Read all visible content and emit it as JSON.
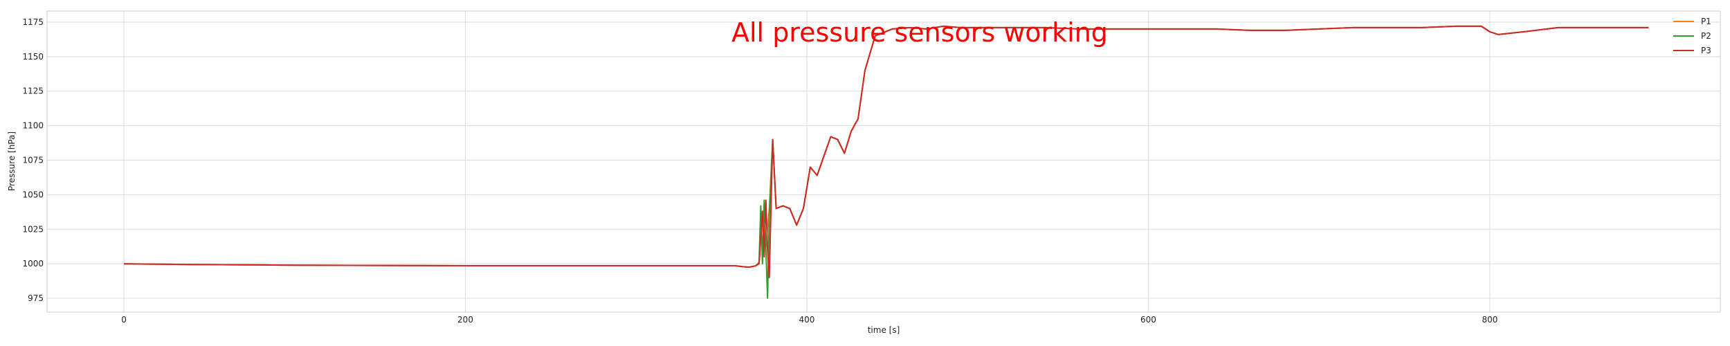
{
  "chart_data": {
    "type": "line",
    "title": "",
    "xlabel": "time [s]",
    "ylabel": "Pressure [hPa]",
    "xlim": [
      -45,
      935
    ],
    "ylim": [
      965,
      1183
    ],
    "xticks": [
      0,
      200,
      400,
      600,
      800
    ],
    "yticks": [
      975,
      1000,
      1025,
      1050,
      1075,
      1100,
      1125,
      1150,
      1175
    ],
    "grid": true,
    "legend_position": "top-right",
    "annotation": {
      "text": "All pressure sensors working",
      "color": "#ff0000"
    },
    "series": [
      {
        "name": "P1",
        "color": "#ff7f0e",
        "x": [
          0,
          40,
          100,
          200,
          300,
          358,
          362,
          366,
          370,
          372,
          374,
          376,
          378,
          380,
          382,
          386,
          390,
          394,
          398,
          402,
          406,
          410,
          414,
          418,
          422,
          426,
          430,
          434,
          440,
          450,
          460,
          470,
          480,
          490,
          500,
          520,
          540,
          560,
          580,
          600,
          620,
          640,
          660,
          680,
          700,
          720,
          740,
          760,
          780,
          795,
          800,
          805,
          820,
          840,
          860,
          880,
          893
        ],
        "y": [
          1000,
          999.5,
          999,
          998.6,
          998.6,
          998.6,
          998,
          997.5,
          998.5,
          1000,
          1035,
          1012,
          1040,
          1090,
          1040,
          1042,
          1040,
          1028,
          1040,
          1070,
          1064,
          1078,
          1092,
          1090,
          1080,
          1096,
          1105,
          1140,
          1165,
          1170,
          1171,
          1170,
          1172,
          1171,
          1171,
          1171,
          1171,
          1170,
          1170,
          1170,
          1170,
          1170,
          1169,
          1169,
          1170,
          1171,
          1171,
          1171,
          1172,
          1172,
          1168,
          1166,
          1168,
          1171,
          1171,
          1171,
          1171
        ]
      },
      {
        "name": "P2",
        "color": "#2ca02c",
        "x": [
          0,
          40,
          100,
          200,
          300,
          358,
          362,
          366,
          370,
          372,
          373,
          374,
          375,
          376,
          377,
          378,
          380,
          382,
          386,
          390,
          394,
          398,
          402,
          406,
          410,
          414,
          418,
          422,
          426,
          430,
          434,
          440,
          450,
          460,
          470,
          480,
          490,
          500,
          520,
          540,
          560,
          580,
          600,
          620,
          640,
          660,
          680,
          700,
          720,
          740,
          760,
          780,
          795,
          800,
          805,
          820,
          840,
          860,
          880,
          893
        ],
        "y": [
          1000,
          999.5,
          999,
          998.6,
          998.6,
          998.6,
          998,
          997.5,
          998.5,
          1001,
          1042,
          1000,
          1046,
          1010,
          975,
          1035,
          1090,
          1040,
          1042,
          1040,
          1028,
          1040,
          1070,
          1064,
          1078,
          1092,
          1090,
          1080,
          1096,
          1105,
          1140,
          1165,
          1170,
          1171,
          1170,
          1172,
          1171,
          1171,
          1171,
          1171,
          1170,
          1170,
          1170,
          1170,
          1170,
          1169,
          1169,
          1170,
          1171,
          1171,
          1171,
          1172,
          1172,
          1168,
          1166,
          1168,
          1171,
          1171,
          1171,
          1171
        ]
      },
      {
        "name": "P3",
        "color": "#d62728",
        "x": [
          0,
          40,
          100,
          200,
          300,
          358,
          362,
          366,
          370,
          372,
          374,
          375,
          376,
          377,
          378,
          380,
          382,
          386,
          390,
          394,
          398,
          402,
          406,
          410,
          414,
          418,
          422,
          426,
          430,
          434,
          440,
          450,
          460,
          470,
          480,
          490,
          500,
          520,
          540,
          560,
          580,
          600,
          620,
          640,
          660,
          680,
          700,
          720,
          740,
          760,
          780,
          795,
          800,
          805,
          820,
          840,
          860,
          880,
          893
        ],
        "y": [
          1000,
          999.5,
          999,
          998.6,
          998.6,
          998.6,
          998,
          997.5,
          998.5,
          1000,
          1038,
          1005,
          1046,
          1010,
          990,
          1090,
          1040,
          1042,
          1040,
          1028,
          1040,
          1070,
          1064,
          1078,
          1092,
          1090,
          1080,
          1096,
          1105,
          1140,
          1165,
          1170,
          1171,
          1170,
          1172,
          1171,
          1171,
          1171,
          1171,
          1170,
          1170,
          1170,
          1170,
          1170,
          1169,
          1169,
          1170,
          1171,
          1171,
          1171,
          1172,
          1172,
          1168,
          1166,
          1168,
          1171,
          1171,
          1171,
          1171
        ]
      }
    ]
  }
}
